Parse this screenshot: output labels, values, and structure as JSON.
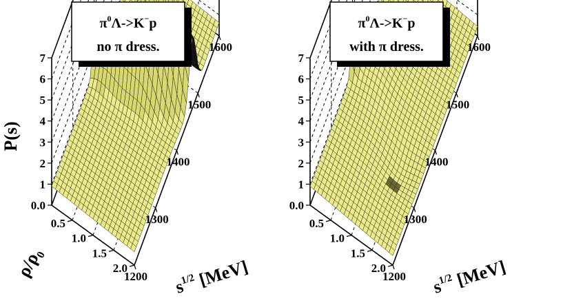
{
  "chart_data": [
    {
      "type": "surface",
      "title": "π⁰Λ->K⁻p",
      "title_main": "π",
      "title_sup": "0",
      "title_rest": "Λ->K",
      "title_sup2": "−",
      "title_end": "p",
      "subtitle": "no π dress.",
      "zlabel": "P(s)",
      "xlabel": "s",
      "xlabel_sup": "1/2",
      "xlabel_rest": " [MeV]",
      "ylabel": "ρ/ρ",
      "ylabel_sub": "0",
      "zlim": [
        0,
        7
      ],
      "xlim": [
        1200,
        1600
      ],
      "ylim": [
        0.0,
        2.0
      ],
      "z_ticks": [
        "7",
        "6",
        "5",
        "4",
        "3",
        "2",
        "1",
        "0.0"
      ],
      "x_ticks": [
        "1200",
        "1300",
        "1400",
        "1500",
        "1600"
      ],
      "y_ticks": [
        "0.5",
        "1.0",
        "1.5",
        "2.0"
      ],
      "surface_color": "#ecec8a",
      "shadow_color": "#111111",
      "features": {
        "lambda1405_peak": {
          "sqrt_s": 1405,
          "rho": 0.0,
          "P": 3.9
        },
        "main_ridge_peak": {
          "sqrt_s": 1440,
          "rho": 1.3,
          "P": 6.1
        },
        "baseline": 0.9
      }
    },
    {
      "type": "surface",
      "title": "π⁰Λ->K⁻p",
      "title_main": "π",
      "title_sup": "0",
      "title_rest": "Λ->K",
      "title_sup2": "−",
      "title_end": "p",
      "subtitle": "with π dress.",
      "zlabel": "",
      "xlabel": "s",
      "xlabel_sup": "1/2",
      "xlabel_rest": " [MeV]",
      "ylabel": "",
      "ylabel_sub": "",
      "zlim": [
        0,
        7
      ],
      "xlim": [
        1200,
        1600
      ],
      "ylim": [
        0.0,
        2.0
      ],
      "z_ticks": [
        "7",
        "6",
        "5",
        "4",
        "3",
        "2",
        "1",
        "0.0"
      ],
      "x_ticks": [
        "1200",
        "1300",
        "1400",
        "1500",
        "1600"
      ],
      "y_ticks": [
        "0.5",
        "1.0",
        "1.5",
        "2.0"
      ],
      "surface_color": "#ecec8a",
      "shadow_color": "#111111",
      "features": {
        "lambda1405_peak": {
          "sqrt_s": 1405,
          "rho": 0.0,
          "P": 3.7
        },
        "baseline": 0.9
      }
    }
  ]
}
